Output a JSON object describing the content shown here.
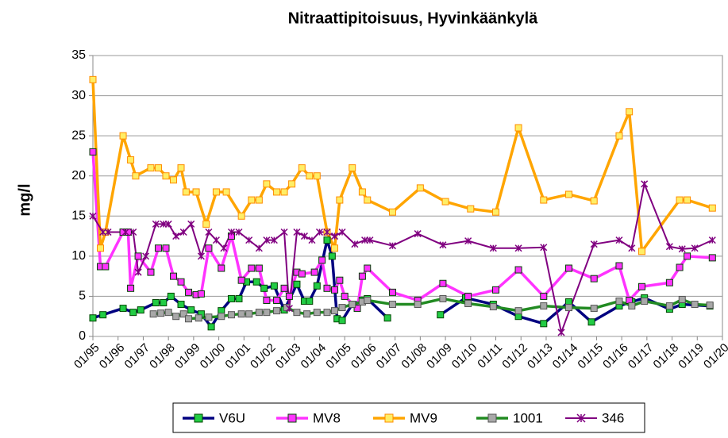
{
  "chart_data": {
    "type": "line",
    "title": "Nitraattipitoisuus, Hyvinkäänkylä",
    "ylabel": "mg/l",
    "xlim": [
      1995,
      2020
    ],
    "xticks": [
      {
        "value": 1995,
        "label": "01/95"
      },
      {
        "value": 1996,
        "label": "01/96"
      },
      {
        "value": 1997,
        "label": "01/97"
      },
      {
        "value": 1998,
        "label": "01/98"
      },
      {
        "value": 1999,
        "label": "01/99"
      },
      {
        "value": 2000,
        "label": "01/00"
      },
      {
        "value": 2001,
        "label": "01/01"
      },
      {
        "value": 2002,
        "label": "01/02"
      },
      {
        "value": 2003,
        "label": "01/03"
      },
      {
        "value": 2004,
        "label": "01/04"
      },
      {
        "value": 2005,
        "label": "01/05"
      },
      {
        "value": 2006,
        "label": "01/06"
      },
      {
        "value": 2007,
        "label": "01/07"
      },
      {
        "value": 2008,
        "label": "01/08"
      },
      {
        "value": 2009,
        "label": "01/09"
      },
      {
        "value": 2010,
        "label": "01/10"
      },
      {
        "value": 2011,
        "label": "01/11"
      },
      {
        "value": 2012,
        "label": "01/12"
      },
      {
        "value": 2013,
        "label": "01/13"
      },
      {
        "value": 2014,
        "label": "01/14"
      },
      {
        "value": 2015,
        "label": "01/15"
      },
      {
        "value": 2016,
        "label": "01/16"
      },
      {
        "value": 2017,
        "label": "01/17"
      },
      {
        "value": 2018,
        "label": "01/18"
      },
      {
        "value": 2019,
        "label": "01/19"
      },
      {
        "value": 2020,
        "label": "01/20"
      }
    ],
    "ylim": [
      0,
      35
    ],
    "yticks": [
      0,
      5,
      10,
      15,
      20,
      25,
      30,
      35
    ],
    "grid": true,
    "legend": "bottom",
    "series": [
      {
        "name": "V6U",
        "color": "#000080",
        "marker": "square",
        "marker_color": "#22cc44",
        "x": [
          1995.0,
          1995.4,
          1996.2,
          1996.6,
          1996.9,
          1997.5,
          1997.8,
          1998.1,
          1998.5,
          1998.9,
          1999.3,
          1999.7,
          2000.1,
          2000.5,
          2000.8,
          2001.1,
          2001.5,
          2001.8,
          2002.2,
          2002.6,
          2003.1,
          2003.4,
          2003.6,
          2003.9,
          2004.3,
          2004.5,
          2004.7,
          2004.9,
          2005.3,
          2005.7,
          2005.9,
          2006.7,
          null,
          2008.8,
          2009.8,
          2010.9,
          2011.9,
          2012.9,
          2013.9,
          2014.8,
          2015.9,
          2016.4,
          2016.9,
          2017.9,
          2018.4,
          2019.5
        ],
        "values": [
          2.3,
          2.7,
          3.5,
          3,
          3.3,
          4.2,
          4.2,
          5,
          4,
          3.3,
          2.8,
          1.2,
          3.2,
          4.7,
          4.7,
          6.8,
          6.8,
          6,
          6.3,
          3.3,
          6.5,
          4.4,
          4.4,
          6.3,
          12,
          10,
          2.2,
          2,
          4,
          4.5,
          4.7,
          2.3,
          null,
          2.7,
          4.8,
          4,
          2.5,
          1.6,
          4.3,
          1.8,
          3.8,
          4.3,
          4.8,
          3.4,
          4,
          3.8
        ]
      },
      {
        "name": "MV8",
        "color": "#ff33ff",
        "marker": "square",
        "marker_color": "#ff33ff",
        "x": [
          1995.0,
          1995.3,
          1995.5,
          1996.2,
          1996.4,
          1996.5,
          1996.8,
          1997.3,
          1997.6,
          1997.9,
          1998.2,
          1998.5,
          1998.8,
          1999.1,
          1999.3,
          1999.6,
          2000.1,
          2000.5,
          2000.9,
          2001.3,
          2001.6,
          2001.9,
          2002.3,
          2002.6,
          2002.8,
          2003.1,
          2003.3,
          2003.8,
          2004.1,
          2004.3,
          2004.6,
          2004.8,
          2005.0,
          2005.5,
          2005.7,
          2005.9,
          2006.9,
          2007.9,
          2008.9,
          2009.9,
          2011.0,
          2011.9,
          2012.9,
          2013.9,
          2014.9,
          2015.9,
          2016.3,
          2016.8,
          2017.9,
          2018.3,
          2018.6,
          2019.6
        ],
        "values": [
          23,
          8.7,
          8.7,
          13,
          13,
          6,
          10,
          8,
          11,
          11,
          7.5,
          6.8,
          5.5,
          5.2,
          5.3,
          11,
          8.5,
          12.5,
          7,
          8.5,
          8.5,
          4.5,
          4.5,
          6,
          5,
          8,
          7.8,
          8,
          9.5,
          6,
          5.8,
          7,
          5,
          3.5,
          7.5,
          8.5,
          5.5,
          4.5,
          6.6,
          5,
          5.8,
          8.3,
          5,
          8.5,
          7.2,
          8.8,
          4.5,
          6.2,
          6.7,
          8.6,
          10,
          9.8
        ]
      },
      {
        "name": "MV9",
        "color": "#ffa500",
        "marker": "square",
        "marker_color": "#ffee66",
        "x": [
          1995.0,
          1995.3,
          1995.5,
          1996.2,
          1996.5,
          1996.7,
          1997.3,
          1997.6,
          1997.9,
          1998.2,
          1998.5,
          1998.7,
          1999.1,
          1999.5,
          1999.9,
          2000.3,
          2000.9,
          2001.3,
          2001.6,
          2001.9,
          2002.3,
          2002.6,
          2002.9,
          2003.3,
          2003.6,
          2003.9,
          2004.3,
          2004.6,
          2004.8,
          2005.3,
          2005.7,
          2005.9,
          2006.9,
          2008.0,
          2009.0,
          2010.0,
          2011.0,
          2011.9,
          2012.9,
          2013.9,
          2014.9,
          2015.9,
          2016.3,
          2016.8,
          2018.3,
          2018.6,
          2019.6
        ],
        "values": [
          32,
          11,
          13,
          25,
          22,
          20,
          21,
          21,
          20,
          19.5,
          21,
          18,
          18,
          14,
          18,
          18,
          15,
          17,
          17,
          19,
          18,
          18,
          19,
          21,
          20,
          20,
          13,
          11,
          17,
          21,
          18,
          17,
          15.5,
          18.5,
          16.8,
          15.9,
          15.5,
          26,
          17,
          17.7,
          16.9,
          25,
          28,
          10.6,
          17,
          17,
          16
        ]
      },
      {
        "name": "1001",
        "color": "#228b22",
        "marker": "square",
        "marker_color": "#a8a8a8",
        "x": [
          1997.4,
          1997.7,
          1998.0,
          1998.3,
          1998.6,
          1998.8,
          1999.2,
          1999.6,
          2000.1,
          2000.5,
          2000.9,
          2001.2,
          2001.6,
          2001.9,
          2002.3,
          2002.7,
          2003.1,
          2003.5,
          2003.9,
          2004.3,
          2004.6,
          2004.9,
          2005.3,
          2005.7,
          2005.9,
          2006.9,
          2007.9,
          2008.9,
          2009.9,
          2010.9,
          2011.9,
          2012.9,
          2013.9,
          2014.9,
          2015.9,
          2016.4,
          2016.9,
          2017.9,
          2018.4,
          2018.9,
          2019.5
        ],
        "values": [
          2.8,
          2.9,
          3,
          2.5,
          2.8,
          2.2,
          2.3,
          2.4,
          2.5,
          2.7,
          2.8,
          2.8,
          3,
          3,
          3.2,
          3.6,
          3,
          2.8,
          3,
          3,
          3.2,
          3.6,
          4,
          4.3,
          4.5,
          4,
          4,
          4.7,
          4.1,
          3.7,
          3.2,
          3.8,
          3.6,
          3.5,
          4.4,
          3.8,
          4.4,
          3.8,
          4.6,
          4,
          3.9
        ]
      },
      {
        "name": "346",
        "color": "#800080",
        "marker": "x",
        "marker_color": "#800080",
        "x": [
          1995.0,
          1995.4,
          1995.6,
          1996.3,
          1996.6,
          1996.8,
          1997.1,
          1997.5,
          1997.8,
          1998.0,
          1998.3,
          1998.6,
          1998.9,
          1999.3,
          1999.6,
          1999.9,
          2000.2,
          2000.5,
          2000.8,
          2001.2,
          2001.6,
          2001.9,
          2002.2,
          2002.6,
          2002.8,
          2003.1,
          2003.4,
          2003.7,
          2004.0,
          2004.3,
          2004.6,
          2004.9,
          2005.4,
          2005.8,
          2006.0,
          2006.9,
          2007.9,
          2008.9,
          2009.9,
          2010.9,
          2011.9,
          2012.9,
          2013.6,
          2014.9,
          2015.9,
          2016.4,
          2016.9,
          2017.9,
          2018.4,
          2018.9,
          2019.6
        ],
        "values": [
          15,
          13,
          13,
          13,
          13,
          8,
          10,
          14,
          14,
          14,
          12.5,
          13,
          14,
          10,
          13,
          12,
          11,
          13,
          13,
          12,
          11,
          12,
          12,
          13,
          3.5,
          13,
          12.5,
          12,
          13,
          13,
          12.5,
          13,
          11.5,
          12,
          12,
          11.3,
          12.8,
          11.4,
          11.9,
          11,
          11,
          11.1,
          0.5,
          11.5,
          12,
          11,
          19,
          11.2,
          10.9,
          11,
          12
        ]
      }
    ]
  }
}
